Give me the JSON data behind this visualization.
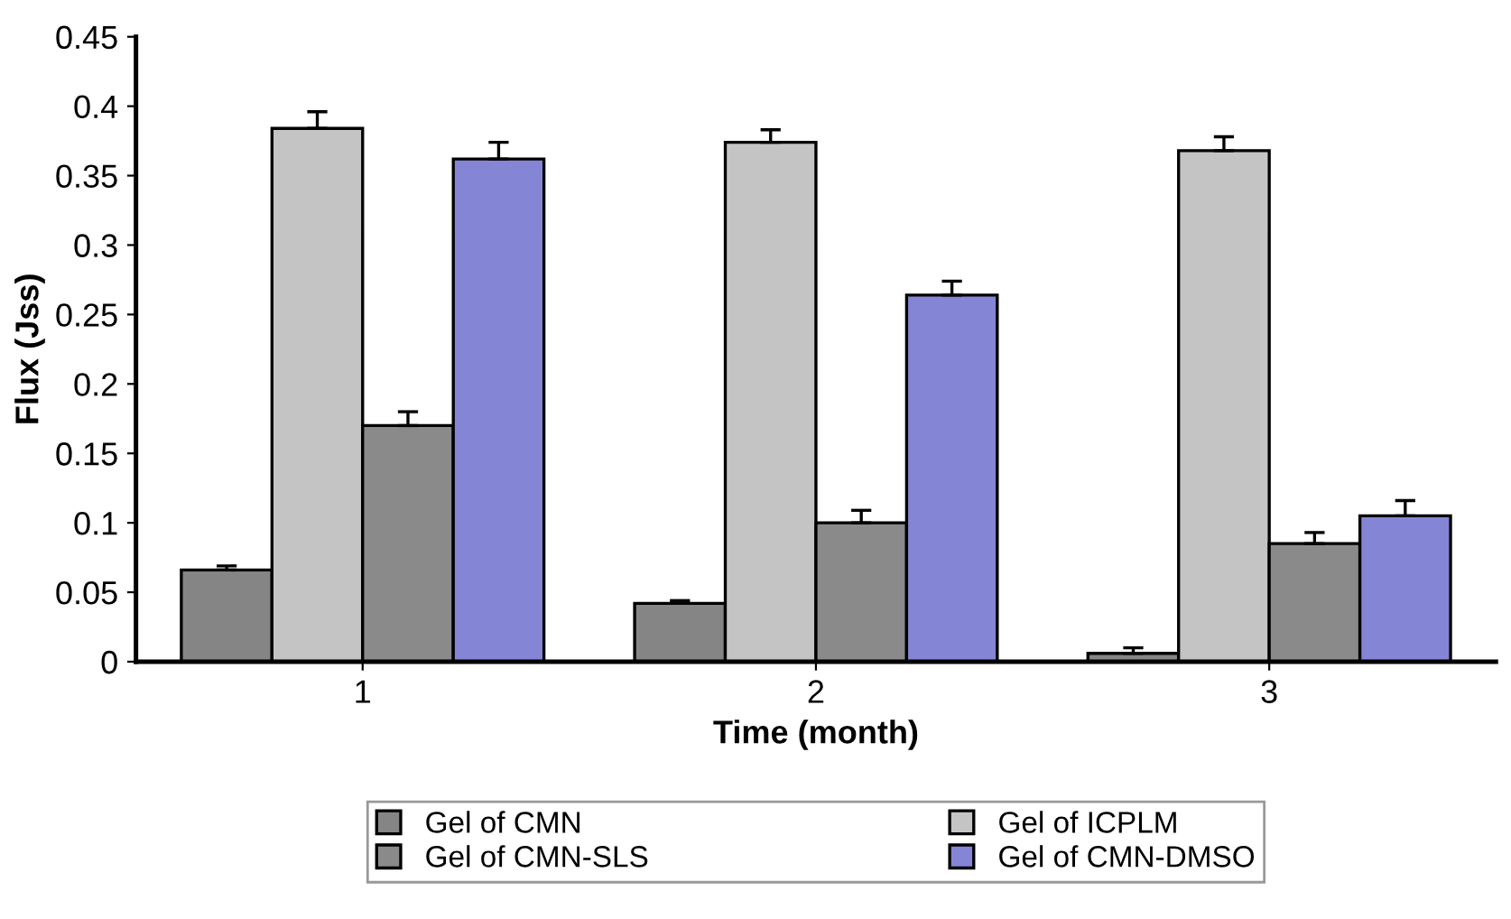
{
  "chart_data": {
    "type": "bar",
    "xlabel": "Time (month)",
    "ylabel": "Flux (Jss)",
    "categories": [
      "1",
      "2",
      "3"
    ],
    "series": [
      {
        "name": "Gel of CMN",
        "color": "#858585",
        "values": [
          0.066,
          0.042,
          0.006
        ],
        "errors": [
          0.003,
          0.002,
          0.004
        ]
      },
      {
        "name": "Gel of ICPLM",
        "color": "#c4c4c4",
        "values": [
          0.384,
          0.374,
          0.368
        ],
        "errors": [
          0.012,
          0.009,
          0.01
        ]
      },
      {
        "name": "Gel of CMN-SLS",
        "color": "#8a8a8a",
        "values": [
          0.17,
          0.1,
          0.085
        ],
        "errors": [
          0.01,
          0.009,
          0.008
        ]
      },
      {
        "name": "Gel of CMN-DMSO",
        "color": "#8585d6",
        "values": [
          0.362,
          0.264,
          0.105
        ],
        "errors": [
          0.012,
          0.01,
          0.011
        ]
      }
    ],
    "ylim": [
      0,
      0.45
    ],
    "yticks": [
      0,
      0.05,
      0.1,
      0.15,
      0.2,
      0.25,
      0.3,
      0.35,
      0.4,
      0.45
    ],
    "grid": false,
    "legend": "bottom"
  }
}
